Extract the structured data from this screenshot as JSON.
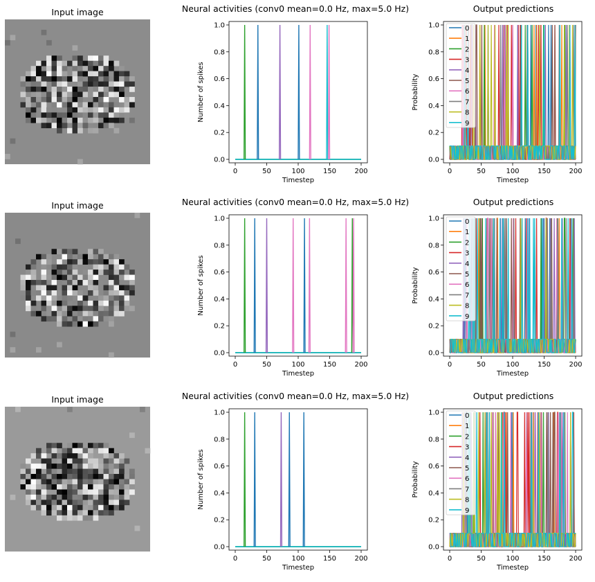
{
  "rows": [
    {
      "input_panel": {
        "title": "Input image",
        "background": "#8c8c8c"
      },
      "activity_panel": {
        "title": "Neural activities (conv0 mean=0.0 Hz, max=5.0 Hz)",
        "xlabel": "Timestep",
        "ylabel": "Number of spikes",
        "xticks": [
          "0",
          "50",
          "100",
          "150",
          "200"
        ],
        "yticks": [
          "0.0",
          "0.2",
          "0.4",
          "0.6",
          "0.8",
          "1.0"
        ]
      },
      "prediction_panel": {
        "title": "Output predictions",
        "xlabel": "Timestep",
        "ylabel": "Probability",
        "xticks": [
          "0",
          "50",
          "100",
          "150",
          "200"
        ],
        "yticks": [
          "0.0",
          "0.2",
          "0.4",
          "0.6",
          "0.8",
          "1.0"
        ],
        "legend": [
          "0",
          "1",
          "2",
          "3",
          "4",
          "5",
          "6",
          "7",
          "8",
          "9"
        ]
      }
    },
    {
      "input_panel": {
        "title": "Input image",
        "background": "#8a8a8a"
      },
      "activity_panel": {
        "title": "Neural activities (conv0 mean=0.0 Hz, max=5.0 Hz)",
        "xlabel": "Timestep",
        "ylabel": "Number of spikes",
        "xticks": [
          "0",
          "50",
          "100",
          "150",
          "200"
        ],
        "yticks": [
          "0.0",
          "0.2",
          "0.4",
          "0.6",
          "0.8",
          "1.0"
        ]
      },
      "prediction_panel": {
        "title": "Output predictions",
        "xlabel": "Timestep",
        "ylabel": "Probability",
        "xticks": [
          "0",
          "50",
          "100",
          "150",
          "200"
        ],
        "yticks": [
          "0.0",
          "0.2",
          "0.4",
          "0.6",
          "0.8",
          "1.0"
        ],
        "legend": [
          "0",
          "1",
          "2",
          "3",
          "4",
          "5",
          "6",
          "7",
          "8",
          "9"
        ]
      }
    },
    {
      "input_panel": {
        "title": "Input image",
        "background": "#9a9a9a"
      },
      "activity_panel": {
        "title": "Neural activities (conv0 mean=0.0 Hz, max=5.0 Hz)",
        "xlabel": "Timestep",
        "ylabel": "Number of spikes",
        "xticks": [
          "0",
          "50",
          "100",
          "150",
          "200"
        ],
        "yticks": [
          "0.0",
          "0.2",
          "0.4",
          "0.6",
          "0.8",
          "1.0"
        ]
      },
      "prediction_panel": {
        "title": "Output predictions",
        "xlabel": "Timestep",
        "ylabel": "Probability",
        "xticks": [
          "0",
          "50",
          "100",
          "150",
          "200"
        ],
        "yticks": [
          "0.0",
          "0.2",
          "0.4",
          "0.6",
          "0.8",
          "1.0"
        ],
        "legend": [
          "0",
          "1",
          "2",
          "3",
          "4",
          "5",
          "6",
          "7",
          "8",
          "9"
        ]
      }
    }
  ],
  "chart_data": [
    {
      "type": "line",
      "panel": "row1-activities",
      "title": "Neural activities (conv0 mean=0.0 Hz, max=5.0 Hz)",
      "xlabel": "Timestep",
      "ylabel": "Number of spikes",
      "xlim": [
        0,
        200
      ],
      "ylim": [
        0,
        1
      ],
      "spikes": [
        {
          "t": 15,
          "color": "#2ca02c"
        },
        {
          "t": 36,
          "color": "#1f77b4"
        },
        {
          "t": 71,
          "color": "#9467bd"
        },
        {
          "t": 101,
          "color": "#1f77b4"
        },
        {
          "t": 119,
          "color": "#e377c2"
        },
        {
          "t": 146,
          "color": "#17becf"
        },
        {
          "t": 149,
          "color": "#e377c2"
        }
      ]
    },
    {
      "type": "line",
      "panel": "row1-predictions",
      "title": "Output predictions",
      "xlabel": "Timestep",
      "ylabel": "Probability",
      "xlim": [
        0,
        200
      ],
      "ylim": [
        0,
        1
      ],
      "legend_position": "upper-left",
      "series": [
        "0",
        "1",
        "2",
        "3",
        "4",
        "5",
        "6",
        "7",
        "8",
        "9"
      ],
      "baseline": 0.1
    },
    {
      "type": "line",
      "panel": "row2-activities",
      "title": "Neural activities (conv0 mean=0.0 Hz, max=5.0 Hz)",
      "xlabel": "Timestep",
      "ylabel": "Number of spikes",
      "xlim": [
        0,
        200
      ],
      "ylim": [
        0,
        1
      ],
      "spikes": [
        {
          "t": 15,
          "color": "#2ca02c"
        },
        {
          "t": 31,
          "color": "#1f77b4"
        },
        {
          "t": 50,
          "color": "#9467bd"
        },
        {
          "t": 92,
          "color": "#e377c2"
        },
        {
          "t": 110,
          "color": "#1f77b4"
        },
        {
          "t": 118,
          "color": "#e377c2"
        },
        {
          "t": 176,
          "color": "#e377c2"
        },
        {
          "t": 186,
          "color": "#2ca02c"
        },
        {
          "t": 188,
          "color": "#e377c2"
        }
      ]
    },
    {
      "type": "line",
      "panel": "row2-predictions",
      "title": "Output predictions",
      "xlabel": "Timestep",
      "ylabel": "Probability",
      "xlim": [
        0,
        200
      ],
      "ylim": [
        0,
        1
      ],
      "legend_position": "upper-left",
      "series": [
        "0",
        "1",
        "2",
        "3",
        "4",
        "5",
        "6",
        "7",
        "8",
        "9"
      ],
      "baseline": 0.1
    },
    {
      "type": "line",
      "panel": "row3-activities",
      "title": "Neural activities (conv0 mean=0.0 Hz, max=5.0 Hz)",
      "xlabel": "Timestep",
      "ylabel": "Number of spikes",
      "xlim": [
        0,
        200
      ],
      "ylim": [
        0,
        1
      ],
      "spikes": [
        {
          "t": 15,
          "color": "#2ca02c"
        },
        {
          "t": 31,
          "color": "#1f77b4"
        },
        {
          "t": 73,
          "color": "#9467bd"
        },
        {
          "t": 86,
          "color": "#1f77b4"
        },
        {
          "t": 109,
          "color": "#1f77b4"
        }
      ]
    },
    {
      "type": "line",
      "panel": "row3-predictions",
      "title": "Output predictions",
      "xlabel": "Timestep",
      "ylabel": "Probability",
      "xlim": [
        0,
        200
      ],
      "ylim": [
        0,
        1
      ],
      "legend_position": "upper-left",
      "series": [
        "0",
        "1",
        "2",
        "3",
        "4",
        "5",
        "6",
        "7",
        "8",
        "9"
      ],
      "baseline": 0.1
    }
  ],
  "palette": [
    "#1f77b4",
    "#ff7f0e",
    "#2ca02c",
    "#d62728",
    "#9467bd",
    "#8c564b",
    "#e377c2",
    "#7f7f7f",
    "#bcbd22",
    "#17becf"
  ]
}
